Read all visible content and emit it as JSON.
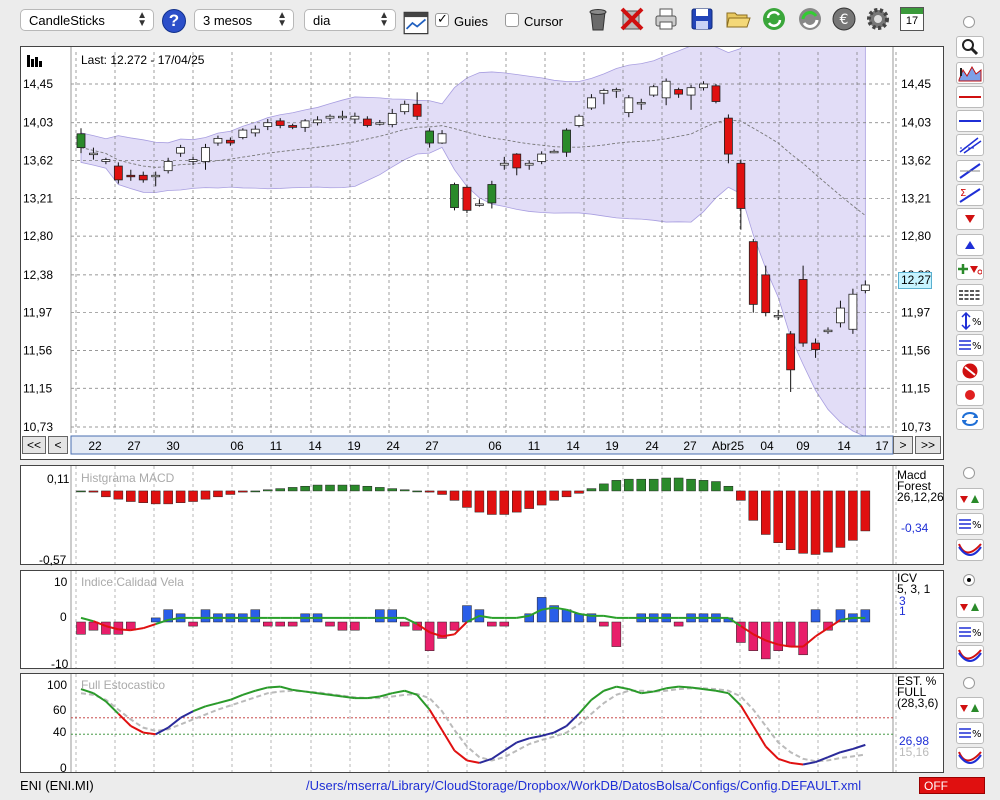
{
  "toolbar": {
    "chart_type": "CandleSticks",
    "period": "3 mesos",
    "interval": "dia",
    "guides_label": "Guies",
    "guides_checked": true,
    "cursor_label": "Cursor",
    "cursor_checked": false,
    "icons": [
      "help-icon",
      "grid-window-icon",
      "trash-icon",
      "delete-icon",
      "print-icon",
      "save-icon",
      "open-folder-icon",
      "refresh-icon",
      "update-icon",
      "euro-icon",
      "settings-icon",
      "calendar-icon"
    ],
    "calendar_day": "17"
  },
  "main_chart": {
    "last_label": "Last: 12.272 - 17/04/25",
    "last_value": "12,27",
    "y_labels": [
      "14,45",
      "14,03",
      "13,62",
      "13,21",
      "12,80",
      "12,38",
      "11,97",
      "11,56",
      "11,15",
      "10,73"
    ],
    "x_labels": [
      "22",
      "27",
      "30",
      "06",
      "11",
      "14",
      "19",
      "24",
      "27",
      "06",
      "11",
      "14",
      "19",
      "24",
      "27",
      "Abr25",
      "04",
      "09",
      "14",
      "17"
    ],
    "nav": {
      "first": "<<",
      "prev": "<",
      "next": ">",
      "last": ">>"
    }
  },
  "macd": {
    "title": "Histgrama MACD",
    "y_top": "0,11",
    "y_bottom": "-0,57",
    "name_line1": "Macd",
    "name_line2": "Forest",
    "params": "26,12,26",
    "value": "-0,34"
  },
  "icv": {
    "title": "Indice Calidad Vela",
    "y_top": "10",
    "y_mid": "0",
    "y_bottom": "-10",
    "name": "ICV",
    "params": "5, 3, 1",
    "value1": "3",
    "value2": "1"
  },
  "stoch": {
    "title": "Full Estocastico",
    "y_labels": [
      "100",
      "60",
      "40",
      "0"
    ],
    "name_line1": "EST. %",
    "name_line2": "FULL",
    "params": "(28,3,6)",
    "value1": "26,98",
    "value2": "15,16"
  },
  "status": {
    "ticker": "ENI (ENI.MI)",
    "path": "/Users/mserra/Library/CloudStorage/Dropbox/WorkDB/DatosBolsa/Configs/Config.DEFAULT.xml",
    "toggle": "OFF"
  },
  "colors": {
    "up": "#2a8a2a",
    "down": "#e01010",
    "band": "#d8d2f4",
    "accent": "#1f2fd6"
  },
  "chart_data": [
    {
      "type": "candlestick",
      "ylim": [
        10.73,
        14.45
      ],
      "x_tick_labels": [
        "22",
        "27",
        "30",
        "06",
        "11",
        "14",
        "19",
        "24",
        "27",
        "06",
        "11",
        "14",
        "19",
        "24",
        "27",
        "Abr25",
        "04",
        "09",
        "14",
        "17"
      ],
      "candles": [
        [
          13.91,
          13.76,
          13.97,
          13.7
        ],
        [
          13.7,
          13.7,
          13.76,
          13.63
        ],
        [
          13.61,
          13.63,
          13.65,
          13.58
        ],
        [
          13.56,
          13.41,
          13.6,
          13.37
        ],
        [
          13.46,
          13.45,
          13.52,
          13.4
        ],
        [
          13.46,
          13.41,
          13.5,
          13.38
        ],
        [
          13.46,
          13.46,
          13.5,
          13.34
        ],
        [
          13.51,
          13.61,
          13.65,
          13.48
        ],
        [
          13.7,
          13.76,
          13.79,
          13.66
        ],
        [
          13.61,
          13.63,
          13.66,
          13.57
        ],
        [
          13.61,
          13.76,
          13.8,
          13.52
        ],
        [
          13.81,
          13.86,
          13.89,
          13.78
        ],
        [
          13.84,
          13.81,
          13.87,
          13.78
        ],
        [
          13.87,
          13.95,
          13.97,
          13.85
        ],
        [
          13.92,
          13.96,
          14.0,
          13.88
        ],
        [
          13.99,
          14.03,
          14.07,
          13.95
        ],
        [
          14.05,
          14.0,
          14.08,
          13.97
        ],
        [
          14.0,
          13.98,
          14.02,
          13.96
        ],
        [
          13.98,
          14.05,
          14.07,
          13.93
        ],
        [
          14.03,
          14.06,
          14.1,
          14.0
        ],
        [
          14.08,
          14.1,
          14.12,
          14.05
        ],
        [
          14.1,
          14.1,
          14.16,
          14.06
        ],
        [
          14.07,
          14.1,
          14.14,
          14.02
        ],
        [
          14.07,
          14.0,
          14.1,
          13.98
        ],
        [
          14.03,
          14.03,
          14.06,
          14.0
        ],
        [
          14.01,
          14.13,
          14.18,
          13.98
        ],
        [
          14.15,
          14.23,
          14.27,
          14.12
        ],
        [
          14.23,
          14.1,
          14.36,
          14.06
        ],
        [
          13.94,
          13.81,
          13.97,
          13.76
        ],
        [
          13.81,
          13.91,
          13.95,
          13.8
        ],
        [
          13.36,
          13.11,
          13.38,
          13.08
        ],
        [
          13.33,
          13.08,
          13.35,
          13.05
        ],
        [
          13.15,
          13.15,
          13.2,
          13.12
        ],
        [
          13.16,
          13.36,
          13.4,
          13.1
        ],
        [
          13.57,
          13.59,
          13.66,
          13.52
        ],
        [
          13.69,
          13.54,
          13.7,
          13.46
        ],
        [
          13.57,
          13.59,
          13.62,
          13.52
        ],
        [
          13.61,
          13.69,
          13.72,
          13.58
        ],
        [
          13.71,
          13.72,
          13.74,
          13.7
        ],
        [
          13.71,
          13.95,
          13.97,
          13.66
        ],
        [
          14.0,
          14.1,
          14.12,
          13.98
        ],
        [
          14.19,
          14.3,
          14.34,
          14.17
        ],
        [
          14.35,
          14.38,
          14.4,
          14.23
        ],
        [
          14.39,
          14.39,
          14.41,
          14.3
        ],
        [
          14.14,
          14.3,
          14.33,
          14.09
        ],
        [
          14.25,
          14.25,
          14.29,
          14.17
        ],
        [
          14.33,
          14.42,
          14.44,
          14.31
        ],
        [
          14.3,
          14.48,
          14.51,
          14.22
        ],
        [
          14.39,
          14.34,
          14.41,
          14.3
        ],
        [
          14.33,
          14.41,
          14.44,
          14.17
        ],
        [
          14.41,
          14.45,
          14.48,
          14.38
        ],
        [
          14.43,
          14.26,
          14.45,
          14.24
        ],
        [
          14.08,
          13.69,
          14.12,
          13.59
        ],
        [
          13.59,
          13.1,
          13.63,
          12.87
        ],
        [
          12.74,
          12.06,
          12.77,
          11.97
        ],
        [
          12.38,
          11.97,
          12.48,
          11.93
        ],
        [
          11.94,
          11.94,
          12.0,
          11.89
        ],
        [
          11.74,
          11.35,
          11.77,
          11.11
        ],
        [
          12.33,
          11.64,
          12.48,
          11.6
        ],
        [
          11.64,
          11.57,
          11.69,
          11.48
        ],
        [
          11.77,
          11.78,
          11.81,
          11.74
        ],
        [
          11.86,
          12.02,
          12.1,
          11.81
        ],
        [
          11.79,
          12.17,
          12.23,
          11.74
        ],
        [
          12.21,
          12.27,
          12.32,
          12.18
        ]
      ]
    },
    {
      "type": "bar",
      "title": "Histgrama MACD",
      "ylim": [
        -0.57,
        0.11
      ],
      "values": [
        0.0,
        -0.01,
        -0.05,
        -0.07,
        -0.09,
        -0.1,
        -0.11,
        -0.11,
        -0.1,
        -0.09,
        -0.07,
        -0.05,
        -0.03,
        -0.01,
        0.0,
        0.01,
        0.02,
        0.03,
        0.04,
        0.05,
        0.05,
        0.05,
        0.05,
        0.04,
        0.03,
        0.02,
        0.01,
        0.0,
        -0.01,
        -0.03,
        -0.08,
        -0.14,
        -0.18,
        -0.2,
        -0.2,
        -0.18,
        -0.15,
        -0.12,
        -0.08,
        -0.05,
        -0.02,
        0.02,
        0.06,
        0.09,
        0.1,
        0.1,
        0.1,
        0.11,
        0.11,
        0.1,
        0.09,
        0.08,
        0.04,
        -0.08,
        -0.25,
        -0.37,
        -0.44,
        -0.5,
        -0.53,
        -0.54,
        -0.52,
        -0.48,
        -0.42,
        -0.34
      ]
    },
    {
      "type": "bar+line",
      "title": "Indice Calidad Vela",
      "ylim": [
        -10,
        10
      ],
      "values": [
        -3,
        -2,
        -3,
        -3,
        -2,
        0,
        1,
        3,
        2,
        -1,
        3,
        2,
        2,
        2,
        3,
        -1,
        -1,
        -1,
        2,
        2,
        -1,
        -2,
        -2,
        0,
        3,
        3,
        -1,
        -2,
        -7,
        -4,
        -2,
        4,
        3,
        -1,
        -1,
        0,
        2,
        6,
        4,
        3,
        2,
        2,
        -1,
        -6,
        0,
        2,
        2,
        2,
        -1,
        2,
        2,
        2,
        1,
        -5,
        -7,
        -9,
        -7,
        -6,
        -8,
        3,
        -2,
        3,
        2,
        3
      ],
      "signal": [
        1.0,
        0.2,
        -1.0,
        -1.8,
        -2.0,
        -1.5,
        -0.5,
        0.5,
        1.0,
        1.0,
        1.0,
        1.0,
        1.0,
        1.0,
        1.0,
        1.0,
        1.0,
        1.0,
        1.0,
        1.0,
        1.0,
        1.0,
        1.0,
        1.0,
        1.0,
        1.0,
        1.0,
        -0.5,
        -2.5,
        -3.5,
        -3.0,
        0.0,
        1.5,
        1.0,
        1.0,
        1.0,
        1.5,
        3.0,
        3.5,
        3.0,
        2.0,
        1.5,
        1.5,
        1.0,
        1.0,
        1.0,
        1.0,
        1.0,
        1.0,
        1.0,
        1.0,
        1.0,
        1.0,
        -1.0,
        -3.0,
        -4.5,
        -5.5,
        -6.0,
        -6.0,
        -3.5,
        -1.5,
        0.5,
        1.0,
        1.0
      ]
    },
    {
      "type": "line",
      "title": "Full Estocastico",
      "ylim": [
        0,
        100
      ],
      "k": [
        95.0,
        90.0,
        80.0,
        65.0,
        50.0,
        42.0,
        40.0,
        48.0,
        60.0,
        68.0,
        74.0,
        78.0,
        82.0,
        88.0,
        93.0,
        97.0,
        98.0,
        94.0,
        92.0,
        90.0,
        88.0,
        86.0,
        84.0,
        84.0,
        86.0,
        90.0,
        93.0,
        88.0,
        70.0,
        45.0,
        20.0,
        8.0,
        5.0,
        10.0,
        20.0,
        30.0,
        35.0,
        38.0,
        42.0,
        50.0,
        65.0,
        82.0,
        93.0,
        98.0,
        95.0,
        90.0,
        92.0,
        96.0,
        98.0,
        97.0,
        95.0,
        93.0,
        90.0,
        75.0,
        50.0,
        25.0,
        10.0,
        5.0,
        3.0,
        6.0,
        12.0,
        18.0,
        22.0,
        26.98
      ],
      "d": [
        90.0,
        88.0,
        82.0,
        70.0,
        58.0,
        48.0,
        44.0,
        46.0,
        52.0,
        58.0,
        64.0,
        70.0,
        75.0,
        80.0,
        85.0,
        90.0,
        92.0,
        93.0,
        92.0,
        91.0,
        89.0,
        87.0,
        85.0,
        84.0,
        84.0,
        86.0,
        88.0,
        89.0,
        84.0,
        68.0,
        45.0,
        25.0,
        12.0,
        8.0,
        12.0,
        20.0,
        28.0,
        33.0,
        37.0,
        42.0,
        52.0,
        65.0,
        78.0,
        88.0,
        93.0,
        93.0,
        92.0,
        93.0,
        95.0,
        96.0,
        96.0,
        95.0,
        93.0,
        86.0,
        70.0,
        50.0,
        30.0,
        18.0,
        10.0,
        7.0,
        8.0,
        11.0,
        13.0,
        15.16
      ]
    }
  ]
}
